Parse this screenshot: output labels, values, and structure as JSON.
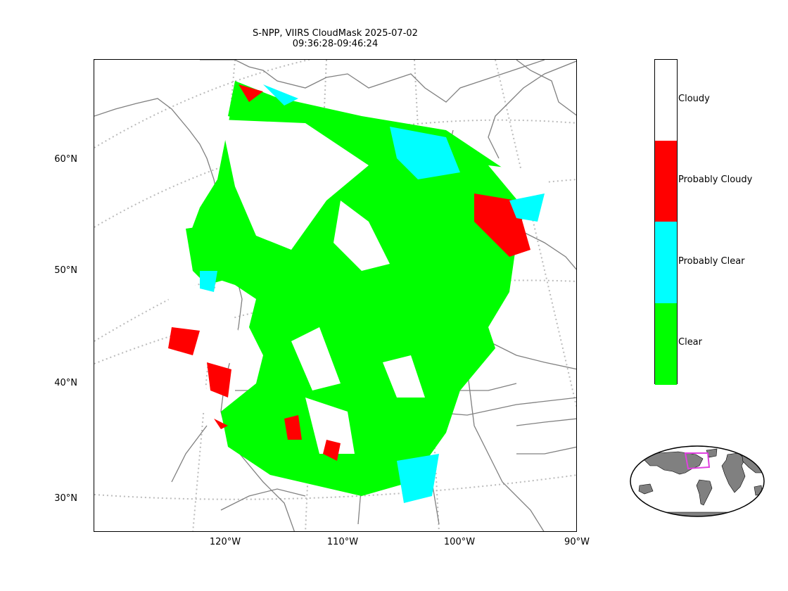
{
  "title": {
    "line1": "S-NPP, VIIRS CloudMask 2025-07-02",
    "line2": "09:36:28-09:46:24"
  },
  "axes": {
    "lat_labels": [
      "60°N",
      "50°N",
      "40°N",
      "30°N"
    ],
    "lon_labels": [
      "120°W",
      "110°W",
      "100°W",
      "90°W"
    ]
  },
  "colorbar": {
    "categories": [
      {
        "label": "Cloudy",
        "color": "#ffffff"
      },
      {
        "label": "Probably Cloudy",
        "color": "#ff0000"
      },
      {
        "label": "Probably Clear",
        "color": "#00ffff"
      },
      {
        "label": "Clear",
        "color": "#00ff00"
      }
    ]
  },
  "colors": {
    "clear": "#00ff00",
    "probably_clear": "#00ffff",
    "probably_cloudy": "#ff0000",
    "cloudy": "#ffffff",
    "coastline": "#808080",
    "graticule": "#bbbbbb",
    "inset_land": "#808080",
    "inset_box": "#e040e0"
  }
}
